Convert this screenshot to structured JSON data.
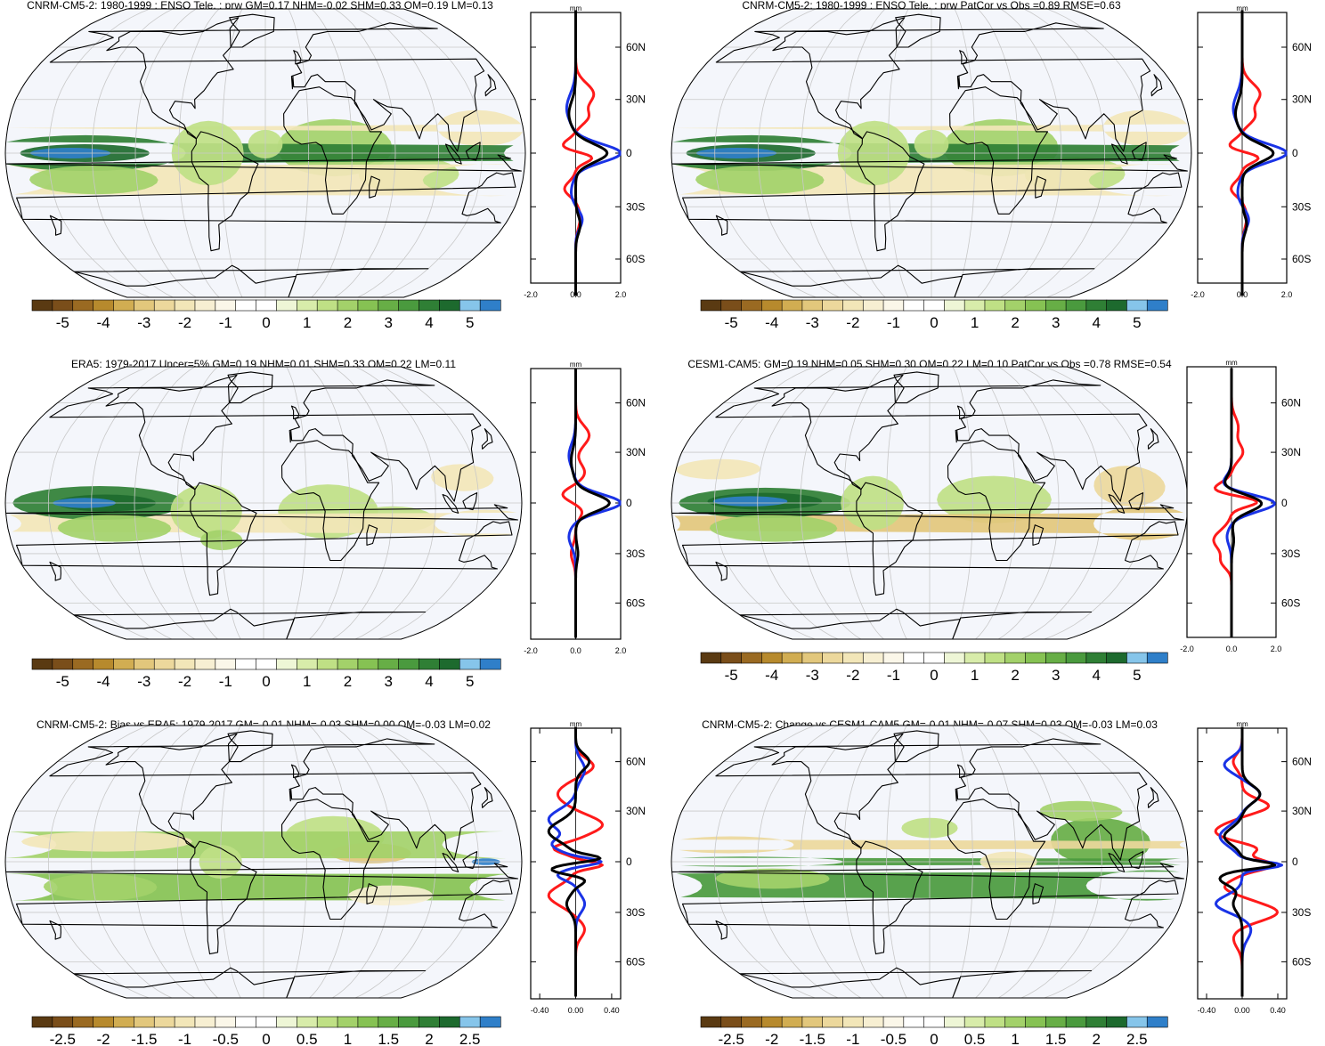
{
  "figure": {
    "units": "mm",
    "lat_ticks": [
      "60N",
      "30N",
      "0",
      "30S",
      "60S"
    ],
    "lat_values": [
      60,
      30,
      0,
      -30,
      -60
    ],
    "colors": {
      "ocean": "#f4f6fb",
      "land": "#ffffff",
      "coast": "#000000",
      "grid": "#c8c8c8",
      "model": "#ff1a1a",
      "obs": "#1a33e6",
      "other": "#000000"
    }
  },
  "colorbars": {
    "main": {
      "labels": [
        "-5",
        "-4",
        "-3",
        "-2",
        "-1",
        "0",
        "1",
        "2",
        "3",
        "4",
        "5"
      ],
      "colors": [
        "#5a3a12",
        "#7a4e1a",
        "#9a6a22",
        "#b78a2d",
        "#d1ad52",
        "#e2c77c",
        "#ecd89c",
        "#f2e6b8",
        "#f7efd2",
        "#fbf7e9",
        "#ffffff",
        "#ffffff",
        "#eef6d6",
        "#d8ecaa",
        "#bfe085",
        "#a3d16a",
        "#86c253",
        "#67ae46",
        "#4a9a3e",
        "#2f7f35",
        "#1d6a2e",
        "#86c5ea",
        "#2f7fc9"
      ]
    },
    "diff": {
      "labels": [
        "-2.5",
        "-2",
        "-1.5",
        "-1",
        "-0.5",
        "0",
        "0.5",
        "1",
        "1.5",
        "2",
        "2.5"
      ],
      "colors": [
        "#5a3a12",
        "#7a4e1a",
        "#9a6a22",
        "#b78a2d",
        "#d1ad52",
        "#e2c77c",
        "#ecd89c",
        "#f2e6b8",
        "#f7efd2",
        "#fbf7e9",
        "#ffffff",
        "#ffffff",
        "#eef6d6",
        "#d8ecaa",
        "#bfe085",
        "#a3d16a",
        "#86c253",
        "#67ae46",
        "#4a9a3e",
        "#2f7f35",
        "#1d6a2e",
        "#86c5ea",
        "#2f7fc9"
      ]
    }
  },
  "panels": [
    {
      "id": "cnrm-model",
      "title": "CNRM-CM5-2: 1980-1999 : ENSO Tele. : prw GM=0.17 NHM=-0.02 SHM=0.33 OM=0.19 LM=0.13",
      "colorbar": "main",
      "profile_xticks": [
        "-2.0",
        "0.0",
        "2.0"
      ],
      "profile_range": [
        -2.0,
        2.0
      ]
    },
    {
      "id": "cnrm-patcor",
      "title": "CNRM-CM5-2: 1980-1999 : ENSO Tele. : prw PatCor vs Obs =0.89 RMSE=0.63",
      "colorbar": "main",
      "profile_xticks": [
        "-2.0",
        "0.0",
        "2.0"
      ],
      "profile_range": [
        -2.0,
        2.0
      ]
    },
    {
      "id": "era5",
      "title": "ERA5: 1979-2017 Uncer=5% GM=0.19 NHM=0.01 SHM=0.33 OM=0.22 LM=0.11",
      "colorbar": "main",
      "profile_xticks": [
        "-2.0",
        "0.0",
        "2.0"
      ],
      "profile_range": [
        -2.0,
        2.0
      ]
    },
    {
      "id": "cesm1",
      "title": "CESM1-CAM5: GM=0.19 NHM=0.05 SHM=0.30 OM=0.22 LM=0.10 PatCor vs Obs =0.78 RMSE=0.54",
      "colorbar": "main",
      "profile_xticks": [
        "-2.0",
        "0.0",
        "2.0"
      ],
      "profile_range": [
        -2.0,
        2.0
      ]
    },
    {
      "id": "bias",
      "title": "CNRM-CM5-2: Bias vs ERA5: 1979-2017 GM=-0.01 NHM=-0.03 SHM=0.00 OM=-0.03 LM=0.02",
      "colorbar": "diff",
      "profile_xticks": [
        "-0.40",
        "0.00",
        "0.40"
      ],
      "profile_range": [
        -0.5,
        0.5
      ]
    },
    {
      "id": "change",
      "title": "CNRM-CM5-2: Change vs CESM1-CAM5 GM=-0.01 NHM=-0.07 SHM=0.03 OM=-0.03 LM=0.03",
      "colorbar": "diff",
      "profile_xticks": [
        "-0.40",
        "0.00",
        "0.40"
      ],
      "profile_range": [
        -0.5,
        0.5
      ]
    }
  ]
}
